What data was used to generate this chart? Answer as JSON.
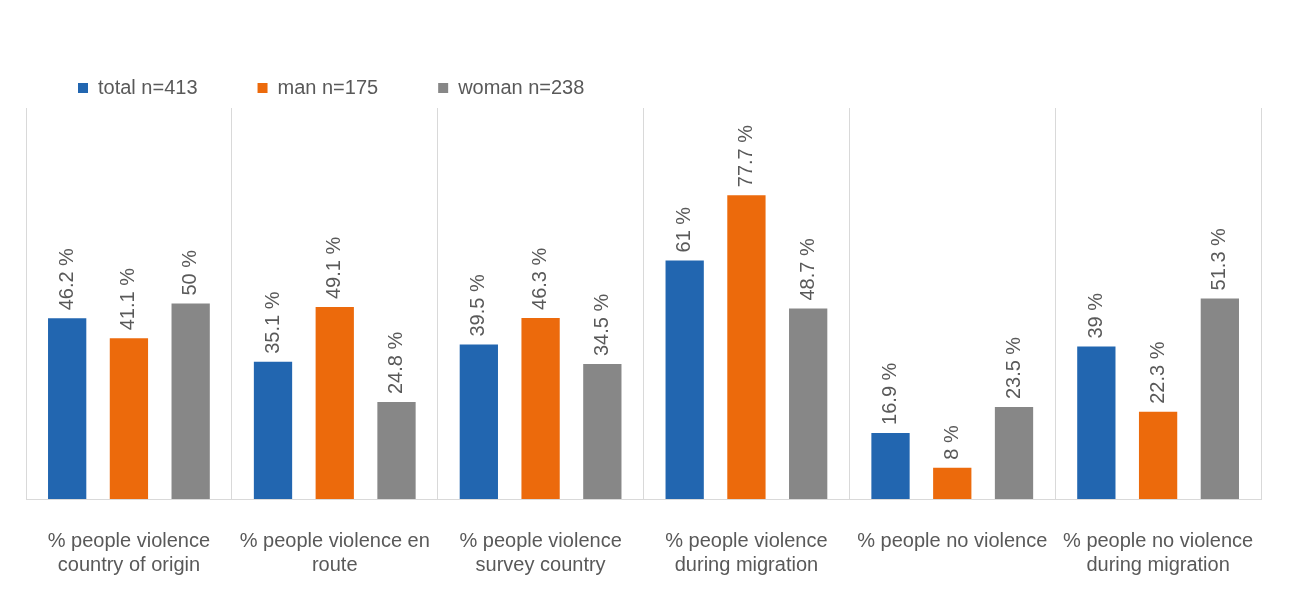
{
  "chart_data": {
    "type": "bar",
    "categories": [
      "% people violence country of origin",
      "% people violence en route",
      "% people violence survey country",
      "% people violence during migration",
      "% people no violence",
      "% people no violence during migration"
    ],
    "series": [
      {
        "name": "total n=413",
        "color": "#2266b0",
        "values": [
          46.2,
          35.1,
          39.5,
          61,
          16.9,
          39
        ],
        "value_labels": [
          "46.2 %",
          "35.1 %",
          "39.5 %",
          "61 %",
          "16.9 %",
          "39 %"
        ]
      },
      {
        "name": "man n=175",
        "color": "#ec6a0c",
        "values": [
          41.1,
          49.1,
          46.3,
          77.7,
          8,
          22.3
        ],
        "value_labels": [
          "41.1 %",
          "49.1 %",
          "46.3 %",
          "77.7 %",
          "8 %",
          "22.3 %"
        ]
      },
      {
        "name": "woman n=238",
        "color": "#878787",
        "values": [
          50,
          24.8,
          34.5,
          48.7,
          23.5,
          51.3
        ],
        "value_labels": [
          "50 %",
          "24.8 %",
          "34.5 %",
          "48.7 %",
          "23.5 %",
          "51.3 %"
        ]
      }
    ],
    "grid": "x",
    "legend": "top left"
  }
}
